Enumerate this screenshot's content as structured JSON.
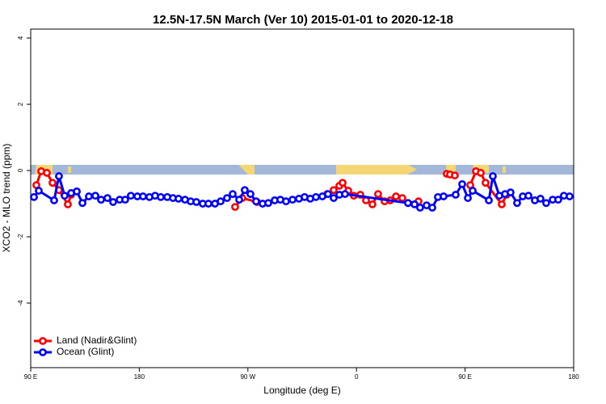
{
  "chart_data": {
    "type": "line",
    "title": "12.5N-17.5N March (Ver 10)   2015-01-01 to 2020-12-18",
    "x_label": "Longitude (deg E)",
    "y_label": "XCO2 - MLO trend (ppm)",
    "xlim": [
      90,
      540
    ],
    "ylim": [
      -5.95,
      4.27
    ],
    "xticks": [
      {
        "value": 90,
        "label": "90 E"
      },
      180,
      {
        "value": 270,
        "label": "90 W"
      },
      {
        "value": 360,
        "label": "0"
      },
      {
        "value": 450,
        "label": "90 E"
      },
      {
        "value": 540,
        "label": "180"
      }
    ],
    "yticks": [
      -4,
      -2,
      0,
      2,
      4
    ],
    "legend": "bottom-left",
    "series": [
      {
        "name": "Land (Nadir&Glint)",
        "color": "#ff0000",
        "x": [
          94.7,
          98.7,
          103.4,
          108.1,
          113.4,
          120.8,
          123.5,
          null,
          259.4,
          265.4,
          277.5,
          null,
          335.7,
          341.1,
          345.8,
          348.5,
          353.2,
          357.8,
          363.2,
          367.9,
          373.2,
          377.9,
          383.3,
          388.0,
          392.7,
          398.0,
          402.7,
          411.4,
          null,
          434.8,
          437.5,
          441.5,
          null,
          454.3,
          459.0,
          463.0,
          467.0,
          480.4,
          484.4
        ],
        "values": [
          -0.44,
          -0.02,
          -0.07,
          -0.37,
          -0.59,
          -1.02,
          -0.73,
          null,
          -1.1,
          -0.83,
          -0.95,
          null,
          -0.71,
          -0.59,
          -0.46,
          -0.37,
          -0.61,
          -0.76,
          -0.73,
          -0.9,
          -1.02,
          -0.71,
          -0.93,
          -0.9,
          -0.78,
          -0.83,
          -0.98,
          -0.93,
          null,
          -0.1,
          -0.12,
          -0.15,
          null,
          -0.44,
          -0.02,
          -0.07,
          -0.37,
          -1.02,
          -0.73
        ]
      },
      {
        "name": "Ocean (Glint)",
        "color": "#0000ff",
        "x": [
          92.7,
          96.7,
          109.4,
          113.4,
          118.1,
          123.5,
          128.2,
          132.9,
          138.2,
          143.6,
          148.3,
          153.6,
          158.3,
          163.7,
          168.3,
          173.0,
          178.4,
          183.1,
          188.4,
          193.1,
          197.8,
          203.2,
          207.9,
          212.5,
          217.9,
          222.6,
          227.3,
          232.6,
          237.3,
          242.7,
          247.4,
          252.7,
          257.4,
          262.8,
          267.4,
          272.1,
          276.8,
          282.2,
          286.9,
          292.2,
          296.9,
          301.6,
          307.0,
          312.3,
          317.0,
          321.7,
          326.4,
          331.7,
          336.4,
          341.1,
          345.8,
          350.5,
          402.7,
          408.1,
          412.7,
          418.1,
          422.8,
          427.5,
          432.2,
          442.2,
          447.6,
          452.3,
          456.3,
          469.7,
          473.0,
          478.4,
          483.1,
          487.7,
          493.1,
          497.8,
          502.5,
          507.8,
          512.5,
          517.2,
          522.6,
          527.2,
          531.9,
          536.6
        ],
        "values": [
          -0.8,
          -0.61,
          -0.9,
          -0.17,
          -0.76,
          -0.68,
          -0.63,
          -0.98,
          -0.78,
          -0.76,
          -0.88,
          -0.83,
          -0.95,
          -0.88,
          -0.88,
          -0.76,
          -0.78,
          -0.78,
          -0.8,
          -0.76,
          -0.8,
          -0.8,
          -0.83,
          -0.85,
          -0.88,
          -0.93,
          -0.95,
          -1.0,
          -1.0,
          -1.0,
          -0.93,
          -0.83,
          -0.71,
          -0.88,
          -0.59,
          -0.71,
          -0.93,
          -1.0,
          -0.98,
          -0.9,
          -0.88,
          -0.93,
          -0.88,
          -0.85,
          -0.8,
          -0.85,
          -0.8,
          -0.78,
          -0.71,
          -0.83,
          -0.73,
          -0.71,
          -0.98,
          -1.02,
          -1.12,
          -1.05,
          -1.12,
          -0.8,
          -0.78,
          -0.73,
          -0.41,
          -0.83,
          -0.61,
          -0.9,
          -0.17,
          -0.76,
          -0.71,
          -0.66,
          -0.98,
          -0.78,
          -0.76,
          -0.9,
          -0.85,
          -0.98,
          -0.88,
          -0.88,
          -0.76,
          -0.78
        ]
      }
    ]
  }
}
